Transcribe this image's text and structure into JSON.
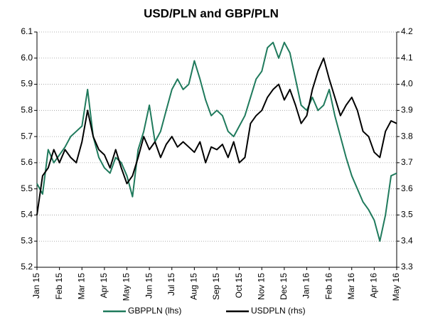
{
  "chart_data": {
    "type": "line",
    "title": "USD/PLN and GBP/PLN",
    "categories": [
      "Jan 15",
      null,
      null,
      null,
      "Feb 15",
      null,
      null,
      null,
      "Mar 15",
      null,
      null,
      null,
      "Apr 15",
      null,
      null,
      null,
      "May 15",
      null,
      null,
      null,
      "Jun 15",
      null,
      null,
      null,
      "Jul 15",
      null,
      null,
      null,
      "Aug 15",
      null,
      null,
      null,
      "Sep 15",
      null,
      null,
      null,
      "Oct 15",
      null,
      null,
      null,
      "Nov 15",
      null,
      null,
      null,
      "Dec 15",
      null,
      null,
      null,
      "Jan 16",
      null,
      null,
      null,
      "Feb 16",
      null,
      null,
      null,
      "Mar 16",
      null,
      null,
      null,
      "Apr 16",
      null,
      null,
      null,
      "May 16"
    ],
    "series": [
      {
        "name": "GBPPLN (lhs)",
        "color": "#1f7a5c",
        "axis": "y",
        "values": [
          5.52,
          5.48,
          5.65,
          5.6,
          5.63,
          5.66,
          5.7,
          5.72,
          5.74,
          5.88,
          5.7,
          5.62,
          5.58,
          5.56,
          5.62,
          5.6,
          5.55,
          5.47,
          5.65,
          5.72,
          5.82,
          5.68,
          5.72,
          5.8,
          5.88,
          5.92,
          5.88,
          5.9,
          5.99,
          5.92,
          5.84,
          5.78,
          5.8,
          5.78,
          5.72,
          5.7,
          5.74,
          5.78,
          5.85,
          5.92,
          5.95,
          6.04,
          6.06,
          6.0,
          6.06,
          6.02,
          5.92,
          5.82,
          5.8,
          5.85,
          5.8,
          5.82,
          5.88,
          5.78,
          5.7,
          5.62,
          5.55,
          5.5,
          5.45,
          5.42,
          5.38,
          5.3,
          5.4,
          5.55,
          5.56
        ]
      },
      {
        "name": "USDPLN (rhs)",
        "color": "#000000",
        "axis": "y2",
        "values": [
          3.5,
          3.65,
          3.68,
          3.75,
          3.7,
          3.75,
          3.72,
          3.7,
          3.78,
          3.9,
          3.8,
          3.75,
          3.73,
          3.68,
          3.75,
          3.68,
          3.62,
          3.65,
          3.72,
          3.8,
          3.75,
          3.78,
          3.72,
          3.77,
          3.8,
          3.76,
          3.78,
          3.76,
          3.74,
          3.78,
          3.7,
          3.76,
          3.75,
          3.77,
          3.72,
          3.78,
          3.7,
          3.72,
          3.85,
          3.88,
          3.9,
          3.95,
          3.98,
          4.0,
          3.94,
          3.98,
          3.92,
          3.85,
          3.88,
          3.98,
          4.05,
          4.1,
          4.02,
          3.95,
          3.88,
          3.92,
          3.95,
          3.9,
          3.82,
          3.8,
          3.74,
          3.72,
          3.82,
          3.86,
          3.85
        ]
      }
    ],
    "ylim": [
      5.2,
      6.1
    ],
    "yticks": [
      5.2,
      5.3,
      5.4,
      5.5,
      5.6,
      5.7,
      5.8,
      5.9,
      {
        "value": 6,
        "label": "6.0"
      },
      6.1
    ],
    "y2lim": [
      3.3,
      4.2
    ],
    "y2ticks": [
      3.3,
      3.4,
      3.5,
      3.6,
      3.7,
      3.8,
      3.9,
      {
        "value": 4,
        "label": "4.0"
      },
      4.1,
      4.2
    ],
    "grid": true,
    "legend": "bottom"
  }
}
